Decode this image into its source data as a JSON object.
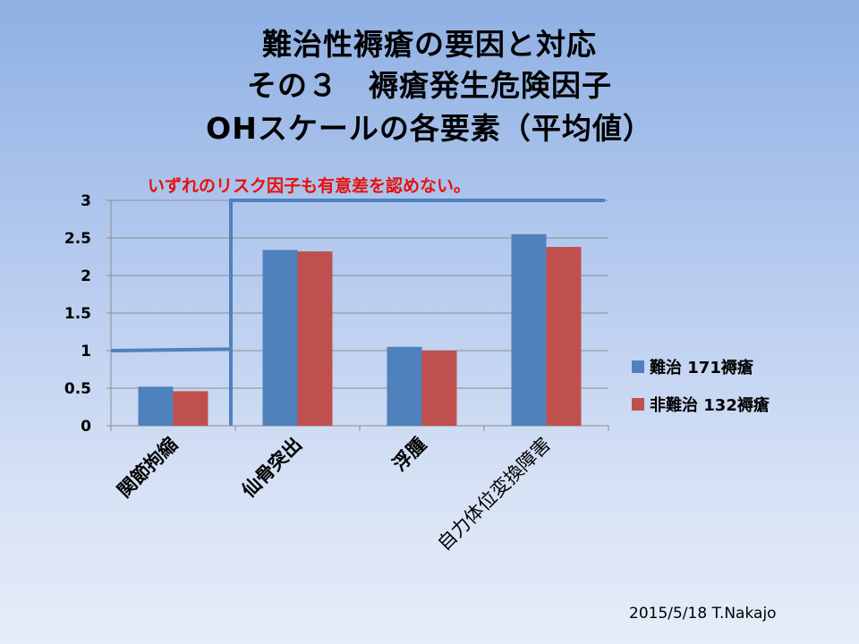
{
  "title": {
    "line1": "難治性褥瘡の要因と対応",
    "line2": "その３　褥瘡発生危険因子",
    "line3": "OHスケールの各要素（平均値）"
  },
  "note": "いずれのリスク因子も有意差を認めない。",
  "footer": "2015/5/18  T.Nakajo",
  "colors": {
    "series1": "#4f81bd",
    "series2": "#c0504d",
    "note": "#e8100c",
    "bracket": "#4f81bd"
  },
  "chart_data": {
    "type": "bar",
    "categories": [
      "関節拘縮",
      "仙骨突出",
      "浮腫",
      "自力体位変換障害"
    ],
    "series": [
      {
        "name": "難治 171褥瘡",
        "values": [
          0.52,
          2.34,
          1.05,
          2.55
        ]
      },
      {
        "name": "非難治 132褥瘡",
        "values": [
          0.46,
          2.32,
          1.0,
          2.38
        ]
      }
    ],
    "ylim": [
      0,
      3
    ],
    "yticks": [
      "0",
      "0.5",
      "1",
      "1.5",
      "2",
      "2.5",
      "3"
    ],
    "grid": true,
    "legend": "right"
  }
}
